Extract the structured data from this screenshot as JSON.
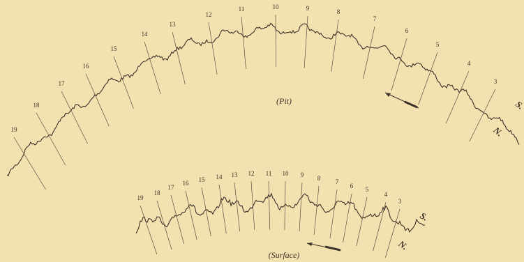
{
  "pit": {
    "labels": [
      "19",
      "18",
      "17",
      "16",
      "15",
      "14",
      "13",
      "12",
      "11",
      "10",
      "9",
      "8",
      "7",
      "6",
      "5",
      "4",
      "3"
    ],
    "caption": "(Pit)",
    "south": "S.",
    "north": "N."
  },
  "surface": {
    "labels": [
      "19",
      "18",
      "17",
      "16",
      "15",
      "14",
      "13",
      "12",
      "11",
      "10",
      "9",
      "8",
      "7",
      "6",
      "5",
      "4",
      "3"
    ],
    "caption": "(Surface)",
    "south": "S.",
    "north": "N."
  }
}
